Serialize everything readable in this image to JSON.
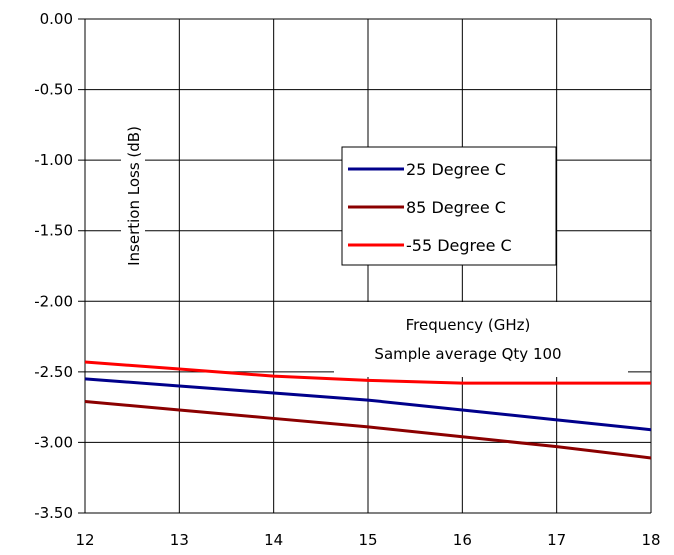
{
  "chart_data": {
    "type": "line",
    "ylabel": "Insertion Loss (dB)",
    "xlabel": "Frequency (GHz)",
    "note": "Sample average Qty 100",
    "xlim": [
      12,
      18
    ],
    "ylim": [
      -3.5,
      0
    ],
    "x_ticks": [
      "12",
      "13",
      "14",
      "15",
      "16",
      "17",
      "18"
    ],
    "y_ticks": [
      "0.00",
      "-0.50",
      "-1.00",
      "-1.50",
      "-2.00",
      "-2.50",
      "-3.00",
      "-3.50"
    ],
    "grid": true,
    "legend_position": "center-right",
    "x": [
      12,
      13,
      14,
      15,
      16,
      17,
      18
    ],
    "series": [
      {
        "name": "25 Degree C",
        "color": "#00008B",
        "values": [
          -2.55,
          -2.6,
          -2.65,
          -2.7,
          -2.77,
          -2.84,
          -2.91
        ]
      },
      {
        "name": "85 Degree C",
        "color": "#8B0000",
        "values": [
          -2.71,
          -2.77,
          -2.83,
          -2.89,
          -2.96,
          -3.03,
          -3.11
        ]
      },
      {
        "name": "-55 Degree C",
        "color": "#FF0000",
        "values": [
          -2.43,
          -2.48,
          -2.53,
          -2.56,
          -2.58,
          -2.58,
          -2.58
        ]
      }
    ]
  }
}
